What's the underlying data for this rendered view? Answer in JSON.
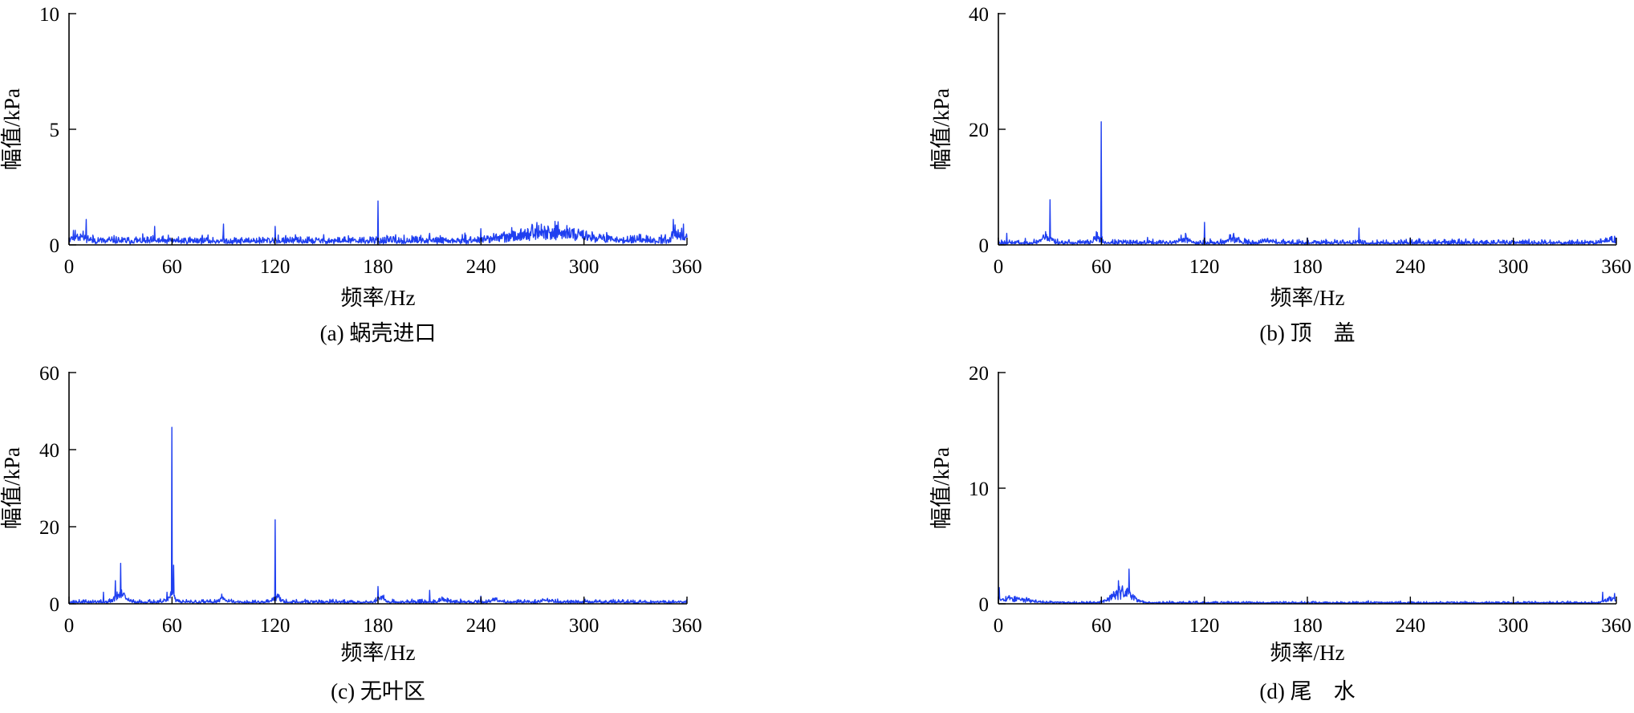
{
  "figure": {
    "background": "#ffffff",
    "series_color": "#1f3ff0",
    "axis_color": "#000000"
  },
  "chart_data": [
    {
      "id": "a",
      "type": "line",
      "caption": "(a) 蜗壳进口",
      "xlabel": "频率/Hz",
      "ylabel": "幅值/kPa",
      "xlim": [
        0,
        360
      ],
      "ylim": [
        0,
        10
      ],
      "xticks": [
        0,
        60,
        120,
        180,
        240,
        300,
        360
      ],
      "yticks": [
        0,
        5,
        10
      ],
      "grid": false,
      "noise": {
        "base": 0.15,
        "amp": 0.35,
        "seed": 11
      },
      "bumps": [
        {
          "center": 5,
          "width": 6,
          "height": 0.35
        },
        {
          "center": 280,
          "width": 28,
          "height": 0.6
        },
        {
          "center": 355,
          "width": 5,
          "height": 0.5
        }
      ],
      "peaks": [
        {
          "x": 10,
          "y": 1.1
        },
        {
          "x": 50,
          "y": 0.8
        },
        {
          "x": 90,
          "y": 0.9
        },
        {
          "x": 120,
          "y": 0.8
        },
        {
          "x": 180,
          "y": 1.9
        },
        {
          "x": 210,
          "y": 0.5
        },
        {
          "x": 240,
          "y": 0.7
        },
        {
          "x": 270,
          "y": 0.85
        },
        {
          "x": 285,
          "y": 1.0
        },
        {
          "x": 352,
          "y": 1.1
        },
        {
          "x": 358,
          "y": 0.9
        }
      ]
    },
    {
      "id": "b",
      "type": "line",
      "caption": "(b) 顶　盖",
      "xlabel": "频率/Hz",
      "ylabel": "幅值/kPa",
      "xlim": [
        0,
        360
      ],
      "ylim": [
        0,
        40
      ],
      "xticks": [
        0,
        60,
        120,
        180,
        240,
        300,
        360
      ],
      "yticks": [
        0,
        20,
        40
      ],
      "grid": false,
      "noise": {
        "base": 0.3,
        "amp": 0.9,
        "seed": 23
      },
      "bumps": [
        {
          "center": 28,
          "width": 4,
          "height": 1.6
        },
        {
          "center": 58,
          "width": 3,
          "height": 1.2
        },
        {
          "center": 108,
          "width": 4,
          "height": 1.0
        },
        {
          "center": 137,
          "width": 4,
          "height": 1.0
        },
        {
          "center": 158,
          "width": 4,
          "height": 0.6
        },
        {
          "center": 356,
          "width": 4,
          "height": 0.8
        }
      ],
      "peaks": [
        {
          "x": 5,
          "y": 2.0
        },
        {
          "x": 30,
          "y": 7.8
        },
        {
          "x": 57,
          "y": 2.3
        },
        {
          "x": 60,
          "y": 21.3
        },
        {
          "x": 87,
          "y": 1.3
        },
        {
          "x": 109,
          "y": 2.0
        },
        {
          "x": 120,
          "y": 3.9
        },
        {
          "x": 137,
          "y": 2.0
        },
        {
          "x": 180,
          "y": 1.2
        },
        {
          "x": 210,
          "y": 2.9
        },
        {
          "x": 240,
          "y": 1.2
        },
        {
          "x": 359,
          "y": 1.5
        }
      ]
    },
    {
      "id": "c",
      "type": "line",
      "caption": "(c) 无叶区",
      "xlabel": "频率/Hz",
      "ylabel": "幅值/kPa",
      "xlim": [
        0,
        360
      ],
      "ylim": [
        0,
        60
      ],
      "xticks": [
        0,
        60,
        120,
        180,
        240,
        300,
        360
      ],
      "yticks": [
        0,
        20,
        40,
        60
      ],
      "grid": false,
      "noise": {
        "base": 0.4,
        "amp": 1.0,
        "seed": 37
      },
      "bumps": [
        {
          "center": 30,
          "width": 4,
          "height": 3.0
        },
        {
          "center": 60,
          "width": 3,
          "height": 2.5
        },
        {
          "center": 90,
          "width": 3,
          "height": 1.4
        },
        {
          "center": 121,
          "width": 3,
          "height": 2.5
        },
        {
          "center": 182,
          "width": 3,
          "height": 1.5
        },
        {
          "center": 218,
          "width": 3,
          "height": 1.2
        },
        {
          "center": 248,
          "width": 4,
          "height": 1.0
        },
        {
          "center": 278,
          "width": 4,
          "height": 0.8
        }
      ],
      "peaks": [
        {
          "x": 20,
          "y": 3.0
        },
        {
          "x": 27,
          "y": 6.0
        },
        {
          "x": 30,
          "y": 10.5
        },
        {
          "x": 57,
          "y": 3.0
        },
        {
          "x": 60,
          "y": 45.8
        },
        {
          "x": 61,
          "y": 10.0
        },
        {
          "x": 89,
          "y": 2.5
        },
        {
          "x": 120,
          "y": 21.8
        },
        {
          "x": 180,
          "y": 4.5
        },
        {
          "x": 210,
          "y": 3.5
        },
        {
          "x": 240,
          "y": 2.0
        }
      ]
    },
    {
      "id": "d",
      "type": "line",
      "caption": "(d) 尾　水",
      "xlabel": "频率/Hz",
      "ylabel": "幅值/kPa",
      "xlim": [
        0,
        360
      ],
      "ylim": [
        0,
        20
      ],
      "xticks": [
        0,
        60,
        120,
        180,
        240,
        300,
        360
      ],
      "yticks": [
        0,
        10,
        20
      ],
      "grid": false,
      "noise": {
        "base": 0.08,
        "amp": 0.2,
        "seed": 53
      },
      "bumps": [
        {
          "center": 2,
          "width": 18,
          "height": 0.6
        },
        {
          "center": 72,
          "width": 8,
          "height": 1.4
        },
        {
          "center": 356,
          "width": 4,
          "height": 0.6
        }
      ],
      "peaks": [
        {
          "x": 0.5,
          "y": 1.4
        },
        {
          "x": 76,
          "y": 3.0
        },
        {
          "x": 70,
          "y": 2.0
        },
        {
          "x": 352,
          "y": 1.0
        },
        {
          "x": 359,
          "y": 0.9
        }
      ]
    }
  ]
}
